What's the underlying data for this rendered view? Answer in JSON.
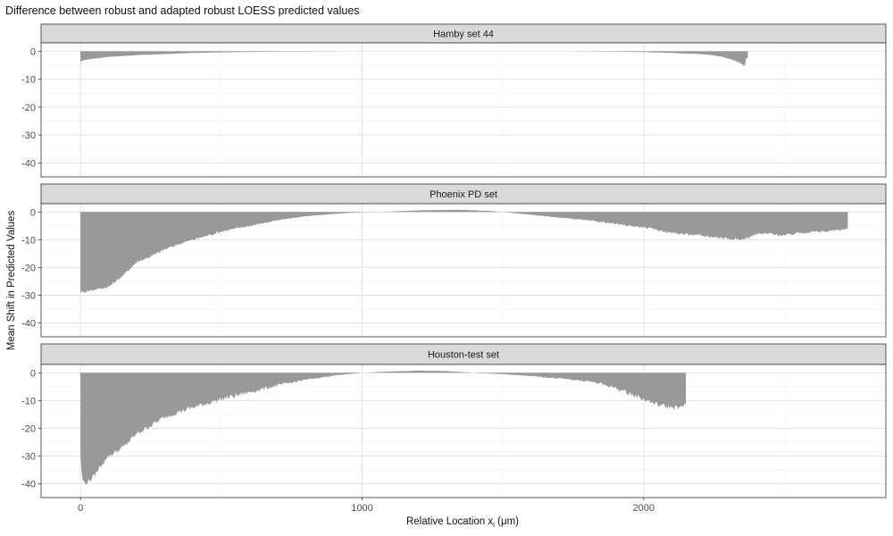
{
  "title": "Difference between robust and adapted robust LOESS predicted values",
  "chart_data": {
    "type": "area",
    "title": "Difference between robust and adapted robust LOESS predicted values",
    "xlabel": "Relative Location x",
    "xlabel_subscript": "i",
    "xlabel_unit": " (μm)",
    "ylabel": "Mean Shift in Predicted Values",
    "xlim": [
      -140,
      2860
    ],
    "ylim": [
      -45,
      3
    ],
    "x_ticks": [
      0,
      1000,
      2000
    ],
    "y_ticks": [
      0,
      -10,
      -20,
      -30,
      -40
    ],
    "grid": true,
    "fill_color": "#999999",
    "panels": [
      {
        "name": "Hamby set 44",
        "x": [
          0,
          10,
          50,
          100,
          200,
          300,
          400,
          500,
          600,
          700,
          800,
          900,
          1000,
          1100,
          1200,
          1300,
          1400,
          1500,
          1600,
          1700,
          1800,
          1900,
          2000,
          2100,
          2200,
          2250,
          2280,
          2300,
          2320,
          2340,
          2350,
          2360,
          2362,
          2370
        ],
        "y": [
          -3.8,
          -3.2,
          -2.6,
          -2.0,
          -1.4,
          -1.0,
          -0.6,
          -0.4,
          -0.25,
          -0.15,
          -0.08,
          -0.03,
          0,
          0,
          0,
          0,
          0,
          0,
          0,
          0,
          -0.05,
          -0.15,
          -0.3,
          -0.6,
          -1.0,
          -1.5,
          -2.0,
          -2.6,
          -3.2,
          -4.0,
          -4.8,
          -5.1,
          -2.5,
          -2.3
        ],
        "noise": 0.25
      },
      {
        "name": "Phoenix PD set",
        "x": [
          0,
          50,
          100,
          150,
          200,
          250,
          300,
          350,
          400,
          450,
          500,
          550,
          600,
          650,
          700,
          750,
          800,
          850,
          900,
          950,
          1000,
          1050,
          1100,
          1150,
          1200,
          1250,
          1300,
          1350,
          1400,
          1450,
          1500,
          1550,
          1600,
          1650,
          1700,
          1750,
          1800,
          1850,
          1900,
          1950,
          2000,
          2050,
          2100,
          2150,
          2200,
          2250,
          2300,
          2350,
          2400,
          2450,
          2500,
          2550,
          2600,
          2650,
          2700,
          2720,
          2725
        ],
        "y": [
          -29,
          -28,
          -27,
          -23,
          -18,
          -16,
          -13.5,
          -11.5,
          -10,
          -8.5,
          -7,
          -6,
          -5,
          -4,
          -3,
          -2.2,
          -1.6,
          -1.1,
          -0.7,
          -0.35,
          -0.1,
          0,
          0.2,
          0.4,
          0.6,
          0.7,
          0.75,
          0.8,
          0.6,
          0.4,
          0,
          -0.5,
          -1.0,
          -1.5,
          -2.0,
          -2.5,
          -3.0,
          -3.6,
          -4.3,
          -5.0,
          -5.5,
          -6.5,
          -7.5,
          -8.0,
          -8.5,
          -9.0,
          -9.5,
          -10,
          -8,
          -7.8,
          -8.5,
          -7.5,
          -7.2,
          -7.0,
          -6.5,
          -6.0,
          -6.0
        ],
        "noise": 0.5
      },
      {
        "name": "Houston-test set",
        "x": [
          0,
          5,
          15,
          30,
          50,
          75,
          100,
          150,
          200,
          250,
          300,
          350,
          400,
          450,
          500,
          600,
          700,
          800,
          900,
          1000,
          1100,
          1200,
          1300,
          1400,
          1500,
          1600,
          1700,
          1800,
          1850,
          1900,
          1950,
          2000,
          2050,
          2100,
          2140,
          2150
        ],
        "y": [
          -30,
          -38,
          -40,
          -39,
          -37,
          -33,
          -30,
          -27,
          -22,
          -19,
          -16,
          -14,
          -12.5,
          -11,
          -9.5,
          -7,
          -4.5,
          -2.5,
          -1.0,
          0,
          0.5,
          0.8,
          0.6,
          0,
          -0.5,
          -1.2,
          -2.0,
          -3.0,
          -4.0,
          -5.5,
          -7.5,
          -9.5,
          -11.5,
          -12.5,
          -12.5,
          -11
        ],
        "noise": 0.9
      }
    ]
  }
}
